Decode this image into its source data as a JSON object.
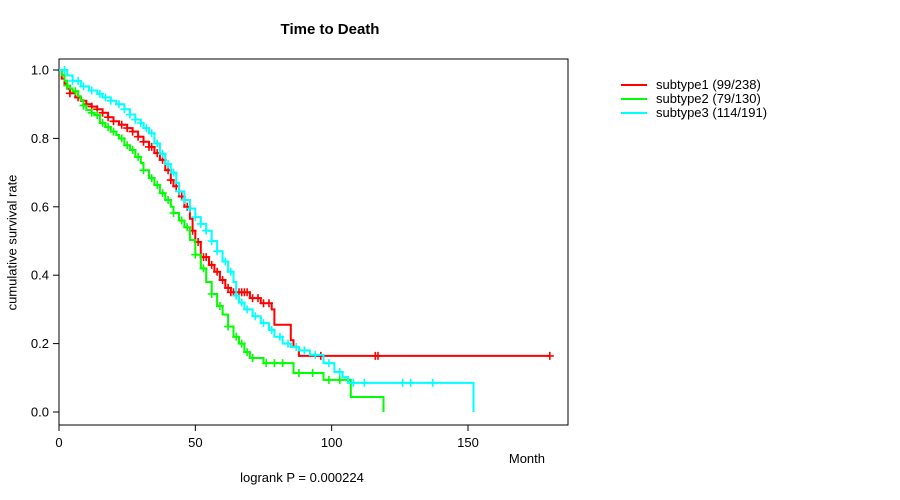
{
  "title": "Time to Death",
  "footnote": "logrank P = 0.000224",
  "x_axis": {
    "label": "Month",
    "ticks": [
      "0",
      "50",
      "100",
      "150"
    ],
    "tick_values": [
      0,
      50,
      100,
      150
    ]
  },
  "y_axis": {
    "label": "cumulative survival rate",
    "ticks": [
      "1.0",
      "0.8",
      "0.6",
      "0.4",
      "0.2",
      "0.0"
    ],
    "tick_values": [
      1.0,
      0.8,
      0.6,
      0.4,
      0.2,
      0.0
    ]
  },
  "chart_data": {
    "type": "line",
    "subtype": "kaplan-meier-step-curves",
    "title": "Time to Death",
    "xlabel": "Month",
    "ylabel": "cumulative survival rate",
    "xlim": [
      0,
      187
    ],
    "ylim": [
      0,
      1.03
    ],
    "grid": false,
    "legend_position": "right-outside",
    "annotation": "logrank P = 0.000224",
    "series": [
      {
        "name": "subtype1",
        "label": "subtype1 (99/238)",
        "events": 99,
        "n": 238,
        "color": "#ff0000",
        "points": [
          [
            0,
            1.0
          ],
          [
            1,
            0.975
          ],
          [
            2,
            0.96
          ],
          [
            3,
            0.945
          ],
          [
            4,
            0.932
          ],
          [
            6,
            0.92
          ],
          [
            8,
            0.91
          ],
          [
            10,
            0.9
          ],
          [
            12,
            0.893
          ],
          [
            14,
            0.885
          ],
          [
            16,
            0.875
          ],
          [
            18,
            0.862
          ],
          [
            20,
            0.85
          ],
          [
            22,
            0.84
          ],
          [
            25,
            0.83
          ],
          [
            27,
            0.82
          ],
          [
            29,
            0.805
          ],
          [
            31,
            0.79
          ],
          [
            33,
            0.775
          ],
          [
            35,
            0.757
          ],
          [
            37,
            0.737
          ],
          [
            39,
            0.707
          ],
          [
            41,
            0.678
          ],
          [
            42,
            0.66
          ],
          [
            44,
            0.63
          ],
          [
            46,
            0.6
          ],
          [
            48,
            0.565
          ],
          [
            49,
            0.53
          ],
          [
            50,
            0.497
          ],
          [
            52,
            0.453
          ],
          [
            55,
            0.43
          ],
          [
            57,
            0.41
          ],
          [
            59,
            0.386
          ],
          [
            61,
            0.363
          ],
          [
            63,
            0.35
          ],
          [
            70,
            0.333
          ],
          [
            74,
            0.318
          ],
          [
            78,
            0.3
          ],
          [
            79,
            0.255
          ],
          [
            85,
            0.21
          ],
          [
            86,
            0.19
          ],
          [
            88,
            0.164
          ],
          [
            180,
            0.164
          ]
        ],
        "censor_months": [
          4,
          7,
          10,
          12,
          14,
          16,
          18,
          20,
          23,
          25,
          27,
          29,
          31,
          33,
          34,
          36,
          38,
          40,
          41,
          43,
          45,
          47,
          49,
          51,
          53,
          54,
          56,
          58,
          60,
          62,
          63,
          64,
          65,
          66,
          67,
          68,
          69,
          71,
          73,
          75,
          77,
          96,
          116,
          117,
          180
        ]
      },
      {
        "name": "subtype2",
        "label": "subtype2 (79/130)",
        "events": 79,
        "n": 130,
        "color": "#00ff00",
        "points": [
          [
            0,
            1.0
          ],
          [
            1,
            0.985
          ],
          [
            2,
            0.969
          ],
          [
            3,
            0.954
          ],
          [
            4,
            0.946
          ],
          [
            5,
            0.938
          ],
          [
            7,
            0.923
          ],
          [
            8,
            0.912
          ],
          [
            9,
            0.896
          ],
          [
            10,
            0.883
          ],
          [
            12,
            0.875
          ],
          [
            13,
            0.868
          ],
          [
            15,
            0.845
          ],
          [
            17,
            0.833
          ],
          [
            19,
            0.82
          ],
          [
            21,
            0.81
          ],
          [
            22,
            0.8
          ],
          [
            24,
            0.78
          ],
          [
            26,
            0.766
          ],
          [
            28,
            0.746
          ],
          [
            30,
            0.728
          ],
          [
            31,
            0.707
          ],
          [
            33,
            0.684
          ],
          [
            35,
            0.664
          ],
          [
            37,
            0.64
          ],
          [
            39,
            0.62
          ],
          [
            41,
            0.6
          ],
          [
            42,
            0.582
          ],
          [
            44,
            0.56
          ],
          [
            46,
            0.54
          ],
          [
            48,
            0.503
          ],
          [
            50,
            0.46
          ],
          [
            52,
            0.42
          ],
          [
            54,
            0.38
          ],
          [
            56,
            0.345
          ],
          [
            58,
            0.31
          ],
          [
            60,
            0.285
          ],
          [
            62,
            0.25
          ],
          [
            64,
            0.22
          ],
          [
            66,
            0.2
          ],
          [
            68,
            0.175
          ],
          [
            70,
            0.158
          ],
          [
            75,
            0.143
          ],
          [
            86,
            0.114
          ],
          [
            97,
            0.094
          ],
          [
            107,
            0.044
          ],
          [
            119,
            0.0
          ]
        ],
        "censor_months": [
          3,
          6,
          9,
          12,
          14,
          16,
          18,
          20,
          23,
          25,
          27,
          29,
          31,
          34,
          36,
          38,
          40,
          42,
          45,
          47,
          50,
          53,
          56,
          59,
          62,
          65,
          67,
          69,
          71,
          76,
          79,
          82,
          88,
          93,
          99,
          103
        ]
      },
      {
        "name": "subtype3",
        "label": "subtype3 (114/191)",
        "events": 114,
        "n": 191,
        "color": "#00ffff",
        "points": [
          [
            0,
            1.0
          ],
          [
            3,
            0.984
          ],
          [
            5,
            0.968
          ],
          [
            8,
            0.952
          ],
          [
            11,
            0.94
          ],
          [
            14,
            0.93
          ],
          [
            16,
            0.92
          ],
          [
            19,
            0.91
          ],
          [
            21,
            0.9
          ],
          [
            24,
            0.885
          ],
          [
            26,
            0.87
          ],
          [
            28,
            0.855
          ],
          [
            30,
            0.845
          ],
          [
            31,
            0.83
          ],
          [
            33,
            0.815
          ],
          [
            35,
            0.785
          ],
          [
            37,
            0.755
          ],
          [
            39,
            0.725
          ],
          [
            41,
            0.7
          ],
          [
            43,
            0.67
          ],
          [
            44,
            0.645
          ],
          [
            46,
            0.62
          ],
          [
            48,
            0.595
          ],
          [
            50,
            0.57
          ],
          [
            52,
            0.55
          ],
          [
            54,
            0.53
          ],
          [
            56,
            0.5
          ],
          [
            58,
            0.47
          ],
          [
            60,
            0.44
          ],
          [
            62,
            0.41
          ],
          [
            64,
            0.38
          ],
          [
            65,
            0.34
          ],
          [
            66,
            0.32
          ],
          [
            68,
            0.3
          ],
          [
            71,
            0.28
          ],
          [
            74,
            0.26
          ],
          [
            77,
            0.24
          ],
          [
            79,
            0.22
          ],
          [
            82,
            0.2
          ],
          [
            85,
            0.19
          ],
          [
            88,
            0.18
          ],
          [
            92,
            0.167
          ],
          [
            97,
            0.143
          ],
          [
            101,
            0.117
          ],
          [
            104,
            0.102
          ],
          [
            106,
            0.085
          ],
          [
            152,
            0.0
          ]
        ],
        "censor_months": [
          2,
          5,
          7,
          9,
          12,
          15,
          17,
          19,
          22,
          24,
          26,
          28,
          30,
          32,
          34,
          36,
          38,
          40,
          42,
          44,
          46,
          48,
          50,
          52,
          54,
          56,
          58,
          61,
          63,
          65,
          67,
          69,
          72,
          75,
          78,
          81,
          84,
          87,
          90,
          94,
          99,
          103,
          108,
          112,
          126,
          129,
          137
        ]
      }
    ]
  }
}
